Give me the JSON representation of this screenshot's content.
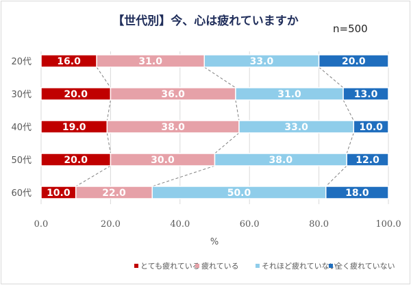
{
  "chart_data": {
    "type": "bar",
    "stacked": true,
    "orientation": "horizontal",
    "title": "【世代別】今、心は疲れていますか",
    "annotation": "n=500",
    "categories": [
      "20代",
      "30代",
      "40代",
      "50代",
      "60代"
    ],
    "series": [
      {
        "name": "とても疲れている",
        "color": "#C00000",
        "values": [
          16.0,
          20.0,
          19.0,
          20.0,
          10.0
        ]
      },
      {
        "name": "疲れている",
        "color": "#E6A1A8",
        "values": [
          31.0,
          36.0,
          38.0,
          30.0,
          22.0
        ]
      },
      {
        "name": "それほど疲れていない",
        "color": "#8FCDEA",
        "values": [
          33.0,
          31.0,
          33.0,
          38.0,
          50.0
        ]
      },
      {
        "name": "全く疲れていない",
        "color": "#1F6EBE",
        "values": [
          20.0,
          13.0,
          10.0,
          12.0,
          18.0
        ]
      }
    ],
    "xlabel": "%",
    "xlim": [
      0,
      100
    ],
    "xticks": [
      "0.0",
      "20.0",
      "40.0",
      "60.0",
      "80.0",
      "100.0"
    ],
    "grid": true,
    "series_lines": true,
    "legend_position": "bottom"
  }
}
